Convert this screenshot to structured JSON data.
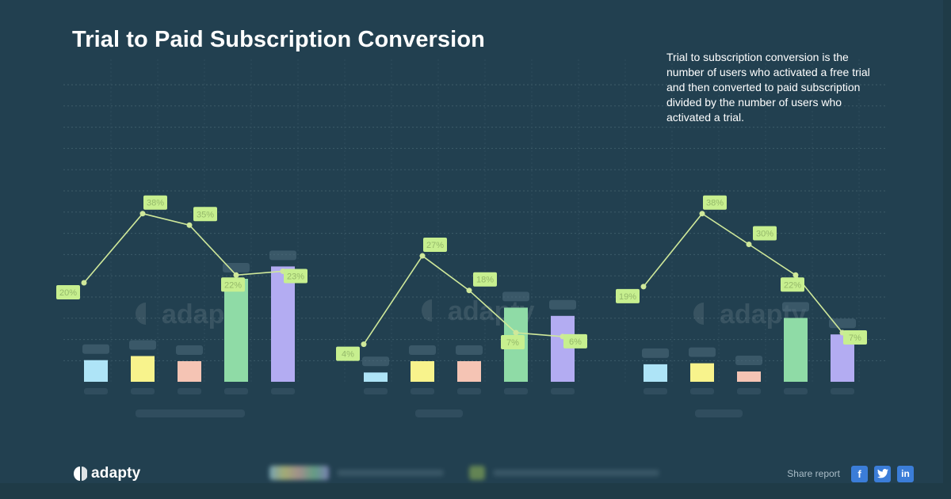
{
  "header": {
    "title": "Trial to Paid Subscription Conversion",
    "description": "Trial to subscription conversion is the number of users who activated a free trial and then converted to paid subscription divided by the number of users who activated a trial."
  },
  "footer": {
    "logo_text": "adapty",
    "share_label": "Share report",
    "share_buttons": [
      {
        "name": "facebook",
        "glyph": "f"
      },
      {
        "name": "twitter",
        "glyph": "t"
      },
      {
        "name": "linkedin",
        "glyph": "in"
      }
    ]
  },
  "chart_data": {
    "type": "bar",
    "watermark": "adapty",
    "grid": true,
    "bar_colors": [
      "#aee4f7",
      "#f8f38c",
      "#f5c4b4",
      "#8fdba6",
      "#b3acf2"
    ],
    "line_color": "#cfe89a",
    "label_color": "#c7ef8f",
    "groups": [
      {
        "bars": [
          0.105,
          0.125,
          0.1,
          0.5,
          0.56
        ],
        "rates": [
          "20%",
          "38%",
          "35%",
          "22%",
          "23%"
        ],
        "rate_values": [
          20,
          38,
          35,
          22,
          23
        ]
      },
      {
        "bars": [
          0.045,
          0.1,
          0.1,
          0.36,
          0.32
        ],
        "rates": [
          "4%",
          "27%",
          "18%",
          "7%",
          "6%"
        ],
        "rate_values": [
          4,
          27,
          18,
          7,
          6
        ]
      },
      {
        "bars": [
          0.085,
          0.09,
          0.05,
          0.31,
          0.23
        ],
        "rates": [
          "19%",
          "38%",
          "30%",
          "22%",
          "7%"
        ],
        "rate_values": [
          19,
          38,
          30,
          22,
          7
        ]
      }
    ]
  }
}
